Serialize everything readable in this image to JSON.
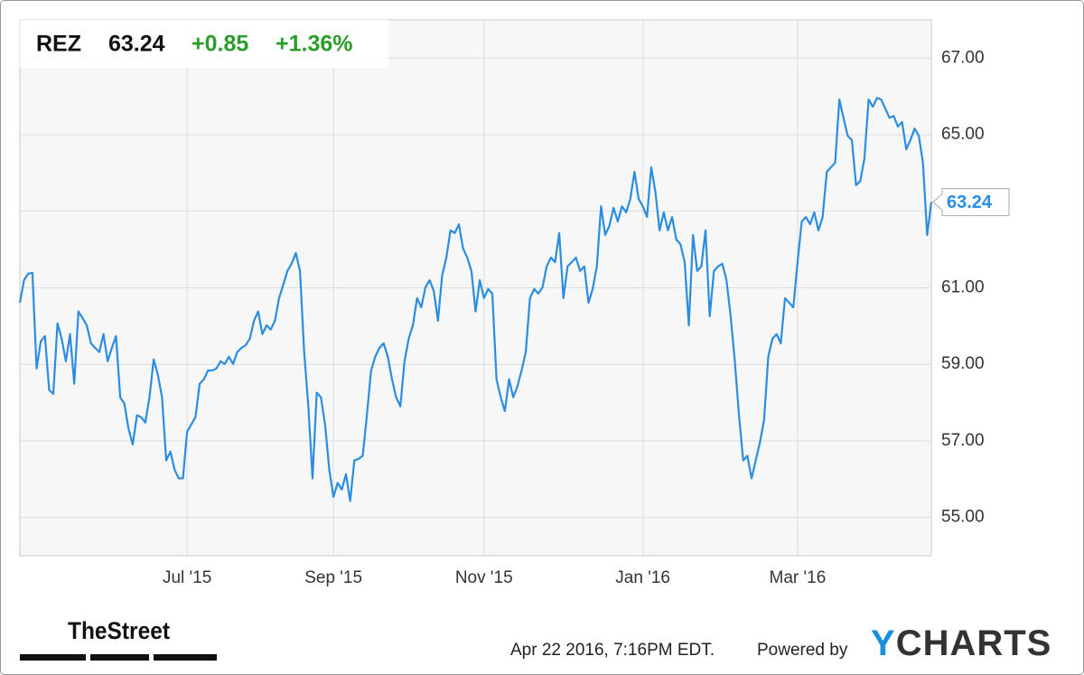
{
  "header": {
    "ticker": "REZ",
    "price": 63.24,
    "change": "+0.85",
    "change_percent": "+1.36%"
  },
  "footer": {
    "source_logo": "TheStreet",
    "timestamp": "Apr 22 2016, 7:16PM EDT.",
    "powered_by": "Powered by",
    "brand": "YCHARTS"
  },
  "chart_data": {
    "type": "line",
    "color": "#2b8de0",
    "grid": true,
    "ylim": [
      54,
      68
    ],
    "yticks": [
      {
        "value": 55,
        "label": "55.00"
      },
      {
        "value": 57,
        "label": "57.00"
      },
      {
        "value": 59,
        "label": "59.00"
      },
      {
        "value": 61,
        "label": "61.00"
      },
      {
        "value": 63,
        "label": "63.00"
      },
      {
        "value": 65,
        "label": "65.00"
      },
      {
        "value": 67,
        "label": "67.00"
      }
    ],
    "categories": [
      null,
      null,
      null,
      null,
      null,
      null,
      null,
      null,
      null,
      null,
      null,
      null,
      null,
      null,
      null,
      null,
      null,
      null,
      null,
      null,
      null,
      null,
      null,
      null,
      null,
      null,
      null,
      null,
      null,
      null,
      null,
      null,
      null,
      null,
      null,
      null,
      null,
      null,
      null,
      null,
      "Jul '15",
      null,
      null,
      null,
      null,
      null,
      null,
      null,
      null,
      null,
      null,
      null,
      null,
      null,
      null,
      null,
      null,
      null,
      null,
      null,
      null,
      null,
      null,
      null,
      null,
      null,
      null,
      null,
      null,
      null,
      null,
      null,
      null,
      null,
      null,
      "Sep '15",
      null,
      null,
      null,
      null,
      null,
      null,
      null,
      null,
      null,
      null,
      null,
      null,
      null,
      null,
      null,
      null,
      null,
      null,
      null,
      null,
      null,
      null,
      null,
      null,
      null,
      null,
      null,
      null,
      null,
      null,
      null,
      null,
      null,
      null,
      null,
      "Nov '15",
      null,
      null,
      null,
      null,
      null,
      null,
      null,
      null,
      null,
      null,
      null,
      null,
      null,
      null,
      null,
      null,
      null,
      null,
      null,
      null,
      null,
      null,
      null,
      null,
      null,
      null,
      null,
      null,
      null,
      null,
      null,
      null,
      null,
      null,
      null,
      null,
      null,
      "Jan '16",
      null,
      null,
      null,
      null,
      null,
      null,
      null,
      null,
      null,
      null,
      null,
      null,
      null,
      null,
      null,
      null,
      null,
      null,
      null,
      null,
      null,
      null,
      null,
      null,
      null,
      null,
      null,
      null,
      null,
      null,
      null,
      null,
      null,
      null,
      null,
      null,
      "Mar '16",
      null,
      null,
      null,
      null,
      null,
      null,
      null,
      null,
      null,
      null,
      null,
      null,
      null,
      null,
      null,
      null,
      null,
      null,
      null,
      null,
      null,
      null,
      null,
      null,
      null,
      null,
      null,
      null,
      null,
      null,
      null,
      null
    ],
    "values": [
      60.61,
      61.2,
      61.37,
      61.39,
      58.89,
      59.6,
      59.74,
      58.33,
      58.23,
      60.07,
      59.67,
      59.08,
      59.79,
      58.49,
      60.38,
      60.21,
      60.02,
      59.55,
      59.43,
      59.32,
      59.79,
      59.08,
      59.43,
      59.74,
      58.14,
      57.97,
      57.31,
      56.91,
      57.67,
      57.62,
      57.48,
      58.14,
      59.13,
      58.73,
      58.14,
      56.49,
      56.72,
      56.25,
      56.02,
      56.02,
      57.24,
      57.43,
      57.62,
      58.49,
      58.61,
      58.84,
      58.84,
      58.89,
      59.08,
      59.01,
      59.2,
      59.01,
      59.32,
      59.43,
      59.5,
      59.67,
      60.14,
      60.38,
      59.79,
      60.02,
      59.91,
      60.14,
      60.73,
      61.08,
      61.44,
      61.63,
      61.91,
      61.44,
      59.32,
      57.9,
      56.02,
      58.26,
      58.14,
      57.43,
      56.25,
      55.54,
      55.9,
      55.73,
      56.13,
      55.43,
      56.49,
      56.53,
      56.61,
      57.67,
      58.84,
      59.2,
      59.43,
      59.55,
      59.2,
      58.61,
      58.14,
      57.9,
      59.08,
      59.67,
      60.02,
      60.73,
      60.49,
      61.01,
      61.2,
      60.92,
      60.14,
      61.32,
      61.79,
      62.5,
      62.43,
      62.66,
      62.03,
      61.79,
      61.44,
      60.38,
      61.2,
      60.73,
      60.97,
      60.85,
      58.61,
      58.14,
      57.78,
      58.61,
      58.14,
      58.42,
      58.84,
      59.32,
      60.73,
      60.97,
      60.85,
      61.01,
      61.56,
      61.79,
      61.67,
      62.43,
      60.73,
      61.56,
      61.67,
      61.79,
      61.44,
      61.56,
      60.61,
      60.97,
      61.56,
      63.13,
      62.38,
      62.62,
      63.09,
      62.73,
      63.13,
      62.97,
      63.32,
      64.03,
      63.32,
      63.13,
      62.85,
      64.15,
      63.51,
      62.5,
      62.97,
      62.5,
      62.85,
      62.26,
      62.14,
      61.67,
      60.02,
      62.38,
      61.44,
      61.56,
      62.5,
      60.26,
      61.44,
      61.56,
      61.63,
      61.2,
      60.26,
      59.08,
      57.67,
      56.49,
      56.61,
      56.02,
      56.49,
      56.96,
      57.55,
      59.2,
      59.67,
      59.79,
      59.55,
      60.73,
      60.61,
      60.49,
      61.67,
      62.73,
      62.85,
      62.66,
      62.97,
      62.5,
      62.85,
      64.03,
      64.15,
      64.27,
      65.92,
      65.44,
      64.97,
      64.86,
      63.68,
      63.79,
      64.38,
      65.92,
      65.73,
      65.96,
      65.92,
      65.68,
      65.44,
      65.49,
      65.21,
      65.33,
      64.62,
      64.86,
      65.16,
      64.97,
      64.27,
      62.38,
      63.24
    ]
  }
}
